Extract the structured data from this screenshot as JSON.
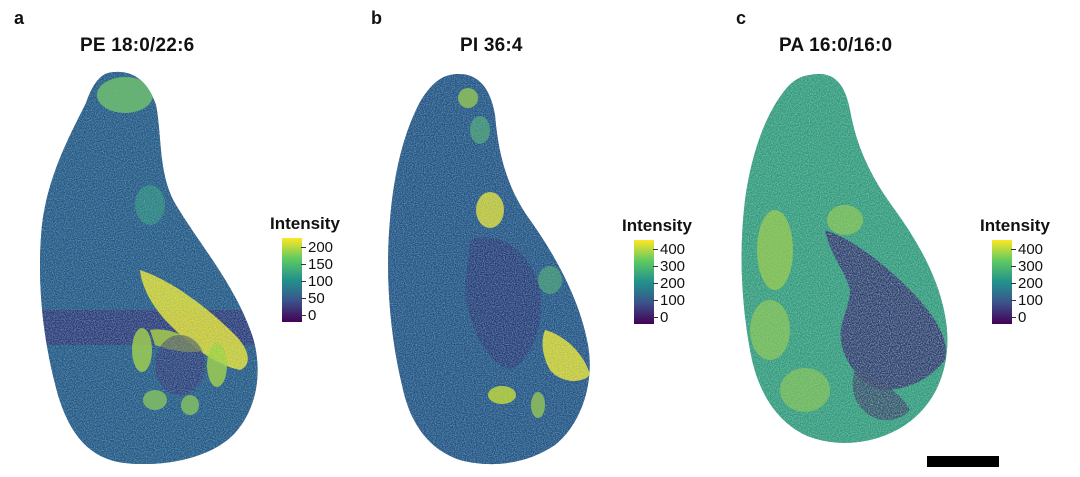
{
  "panels": [
    {
      "letter": "a",
      "title": "PE 18:0/22:6",
      "legend": {
        "title": "Intensity",
        "ticks": [
          "200",
          "150",
          "100",
          "50",
          "0"
        ]
      }
    },
    {
      "letter": "b",
      "title": "PI 36:4",
      "legend": {
        "title": "Intensity",
        "ticks": [
          "400",
          "300",
          "200",
          "100",
          "0"
        ]
      }
    },
    {
      "letter": "c",
      "title": "PA 16:0/16:0",
      "legend": {
        "title": "Intensity",
        "ticks": [
          "400",
          "300",
          "200",
          "100",
          "0"
        ]
      }
    }
  ],
  "colormap": {
    "name": "viridis",
    "stops": [
      "#440154",
      "#3b528b",
      "#21918c",
      "#5ec962",
      "#fde725"
    ]
  }
}
